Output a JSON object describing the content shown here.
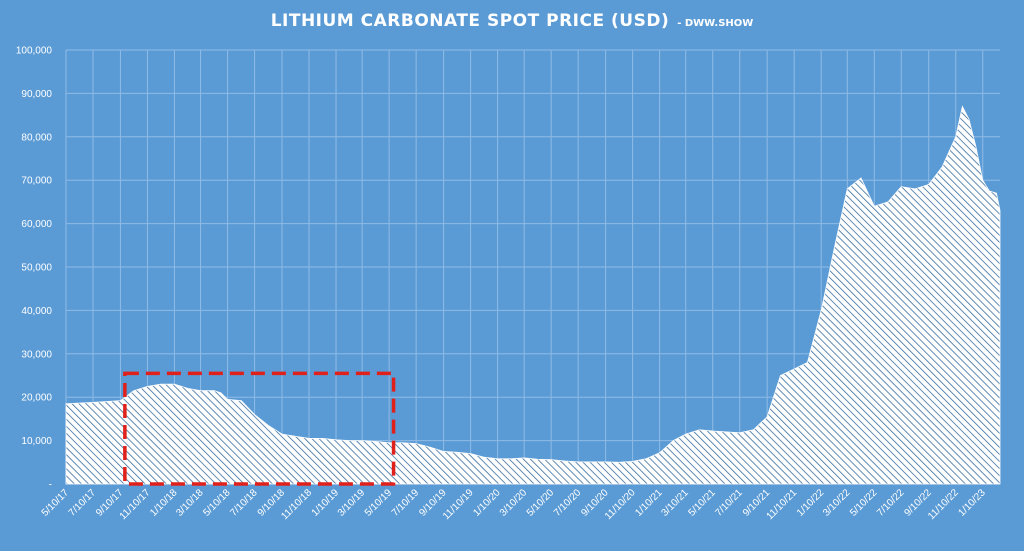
{
  "chart_data": {
    "type": "area",
    "title": "LITHIUM CARBONATE SPOT PRICE (USD)",
    "subtitle": "- DWW.SHOW",
    "xlabel": "",
    "ylabel": "",
    "ylim": [
      0,
      100000
    ],
    "yticks": [
      0,
      10000,
      20000,
      30000,
      40000,
      50000,
      60000,
      70000,
      80000,
      90000,
      100000
    ],
    "ytick_labels": [
      "-",
      "10,000",
      "20,000",
      "30,000",
      "40,000",
      "50,000",
      "60,000",
      "70,000",
      "80,000",
      "90,000",
      "100,000"
    ],
    "xlim": [
      "2017-05-10",
      "2023-02-18"
    ],
    "xtick_labels": [
      "5/10/17",
      "7/10/17",
      "9/10/17",
      "11/10/17",
      "1/10/18",
      "3/10/18",
      "5/10/18",
      "7/10/18",
      "9/10/18",
      "11/10/18",
      "1/10/19",
      "3/10/19",
      "5/10/19",
      "7/10/19",
      "9/10/19",
      "11/10/19",
      "1/10/20",
      "3/10/20",
      "5/10/20",
      "7/10/20",
      "9/10/20",
      "11/10/20",
      "1/10/21",
      "3/10/21",
      "5/10/21",
      "7/10/21",
      "9/10/21",
      "11/10/21",
      "1/10/22",
      "3/10/22",
      "5/10/22",
      "7/10/22",
      "9/10/22",
      "11/10/22",
      "1/10/23"
    ],
    "grid": true,
    "legend": "none",
    "fill_pattern": "diagonal-hatch",
    "colors": {
      "background": "#5b9bd5",
      "fill": "#ffffff",
      "hatch": "#3b6e9e",
      "grid": "#8fbbe6",
      "highlight": "#e0201b"
    },
    "highlight_region": {
      "x_start": "2017-09-20",
      "x_end": "2019-05-20",
      "y_max": 25500,
      "style": "dashed-rectangle"
    },
    "series": [
      {
        "points": [
          [
            "2017-05-10",
            18500
          ],
          [
            "2017-07-10",
            18800
          ],
          [
            "2017-09-10",
            19200
          ],
          [
            "2017-10-10",
            21500
          ],
          [
            "2017-11-10",
            22500
          ],
          [
            "2017-12-10",
            23000
          ],
          [
            "2018-01-10",
            23000
          ],
          [
            "2018-02-10",
            22000
          ],
          [
            "2018-03-10",
            21500
          ],
          [
            "2018-04-10",
            21500
          ],
          [
            "2018-04-25",
            21000
          ],
          [
            "2018-05-10",
            19500
          ],
          [
            "2018-06-10",
            19200
          ],
          [
            "2018-07-10",
            16000
          ],
          [
            "2018-08-10",
            13500
          ],
          [
            "2018-09-10",
            11500
          ],
          [
            "2018-10-10",
            11000
          ],
          [
            "2018-11-10",
            10500
          ],
          [
            "2018-12-10",
            10500
          ],
          [
            "2019-01-10",
            10200
          ],
          [
            "2019-02-10",
            10000
          ],
          [
            "2019-03-10",
            10000
          ],
          [
            "2019-04-10",
            9800
          ],
          [
            "2019-05-10",
            9500
          ],
          [
            "2019-06-10",
            9500
          ],
          [
            "2019-07-10",
            9300
          ],
          [
            "2019-08-10",
            8500
          ],
          [
            "2019-09-10",
            7500
          ],
          [
            "2019-10-10",
            7300
          ],
          [
            "2019-11-10",
            7000
          ],
          [
            "2019-12-10",
            6200
          ],
          [
            "2020-01-10",
            5800
          ],
          [
            "2020-02-10",
            5800
          ],
          [
            "2020-03-10",
            6000
          ],
          [
            "2020-04-10",
            5700
          ],
          [
            "2020-05-10",
            5600
          ],
          [
            "2020-06-10",
            5300
          ],
          [
            "2020-07-10",
            5100
          ],
          [
            "2020-08-10",
            5100
          ],
          [
            "2020-09-10",
            5100
          ],
          [
            "2020-10-10",
            5000
          ],
          [
            "2020-11-10",
            5200
          ],
          [
            "2020-12-10",
            5800
          ],
          [
            "2021-01-10",
            7200
          ],
          [
            "2021-02-10",
            10000
          ],
          [
            "2021-03-10",
            11500
          ],
          [
            "2021-04-10",
            12500
          ],
          [
            "2021-05-10",
            12200
          ],
          [
            "2021-06-10",
            12000
          ],
          [
            "2021-07-10",
            11800
          ],
          [
            "2021-08-10",
            12500
          ],
          [
            "2021-09-10",
            15500
          ],
          [
            "2021-10-10",
            25000
          ],
          [
            "2021-11-10",
            26500
          ],
          [
            "2021-12-10",
            28000
          ],
          [
            "2022-01-10",
            40000
          ],
          [
            "2022-02-10",
            55000
          ],
          [
            "2022-03-10",
            68000
          ],
          [
            "2022-04-10",
            70500
          ],
          [
            "2022-05-10",
            64000
          ],
          [
            "2022-06-10",
            65000
          ],
          [
            "2022-07-10",
            68500
          ],
          [
            "2022-08-10",
            68000
          ],
          [
            "2022-09-10",
            69000
          ],
          [
            "2022-10-10",
            73000
          ],
          [
            "2022-11-10",
            80000
          ],
          [
            "2022-11-25",
            87000
          ],
          [
            "2022-12-10",
            84000
          ],
          [
            "2022-12-25",
            78000
          ],
          [
            "2023-01-10",
            70000
          ],
          [
            "2023-01-25",
            67500
          ],
          [
            "2023-02-10",
            67000
          ],
          [
            "2023-02-18",
            63000
          ]
        ]
      }
    ]
  }
}
